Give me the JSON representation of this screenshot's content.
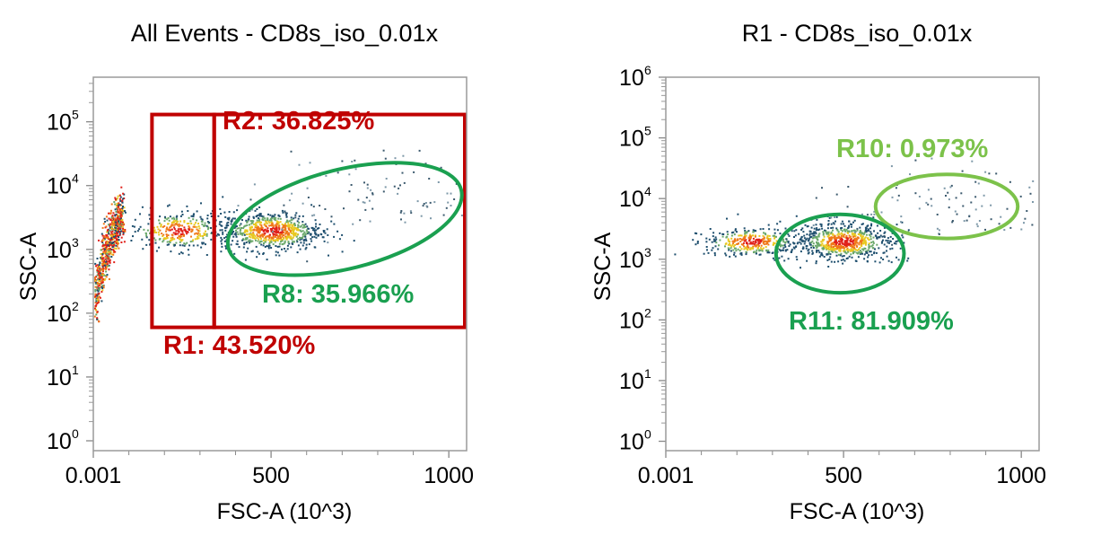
{
  "chart_data": [
    {
      "type": "scatter",
      "title": "All Events - CD8s_iso_0.01x",
      "xlabel": "FSC-A (10^3)",
      "ylabel": "SSC-A",
      "x_scale": "linear",
      "y_scale": "log",
      "xlim": [
        0,
        1050
      ],
      "ylim": [
        0.7,
        500000
      ],
      "x_ticks": [
        {
          "value": 0.001,
          "label": "0.001"
        },
        {
          "value": 500,
          "label": "500"
        },
        {
          "value": 1000,
          "label": "1000"
        }
      ],
      "y_ticks": [
        {
          "value": 1,
          "base": "10",
          "exp": "0"
        },
        {
          "value": 10,
          "base": "10",
          "exp": "1"
        },
        {
          "value": 100,
          "base": "10",
          "exp": "2"
        },
        {
          "value": 1000,
          "base": "10",
          "exp": "3"
        },
        {
          "value": 10000,
          "base": "10",
          "exp": "4"
        },
        {
          "value": 100000,
          "base": "10",
          "exp": "5"
        }
      ],
      "populations": [
        {
          "x_min": 0,
          "x_max": 80,
          "y_min": 80,
          "y_max": 4000,
          "density": "high"
        },
        {
          "center": [
            240,
            2000
          ],
          "spread": [
            70,
            0.15
          ],
          "density": "medium"
        },
        {
          "center": [
            500,
            2000
          ],
          "spread": [
            70,
            0.15
          ],
          "density": "high"
        },
        {
          "center": [
            800,
            7000
          ],
          "spread": [
            180,
            0.3
          ],
          "density": "sparse"
        }
      ],
      "gates": [
        {
          "name": "R1",
          "shape": "rectangle",
          "x": [
            165,
            340
          ],
          "y": [
            60,
            130000
          ],
          "color": "#c00000",
          "label": "R1: 43.520%"
        },
        {
          "name": "R2",
          "shape": "rectangle",
          "x": [
            340,
            1050
          ],
          "y": [
            60,
            130000
          ],
          "color": "#c00000",
          "label": "R2: 36.825%"
        },
        {
          "name": "R8",
          "shape": "ellipse",
          "x": [
            370,
            1050
          ],
          "y": [
            500,
            18000
          ],
          "color": "#1aa050",
          "label": "R8: 35.966%"
        }
      ]
    },
    {
      "type": "scatter",
      "title": "R1 - CD8s_iso_0.01x",
      "xlabel": "FSC-A (10^3)",
      "ylabel": "SSC-A",
      "x_scale": "linear",
      "y_scale": "log",
      "xlim": [
        0,
        1050
      ],
      "ylim": [
        0.7,
        1000000
      ],
      "x_ticks": [
        {
          "value": 0.001,
          "label": "0.001"
        },
        {
          "value": 500,
          "label": "500"
        },
        {
          "value": 1000,
          "label": "1000"
        }
      ],
      "y_ticks": [
        {
          "value": 1,
          "base": "10",
          "exp": "0"
        },
        {
          "value": 10,
          "base": "10",
          "exp": "1"
        },
        {
          "value": 100,
          "base": "10",
          "exp": "2"
        },
        {
          "value": 1000,
          "base": "10",
          "exp": "3"
        },
        {
          "value": 10000,
          "base": "10",
          "exp": "4"
        },
        {
          "value": 100000,
          "base": "10",
          "exp": "5"
        },
        {
          "value": 1000000,
          "base": "10",
          "exp": "6"
        }
      ],
      "populations": [
        {
          "center": [
            240,
            2000
          ],
          "spread": [
            70,
            0.12
          ],
          "density": "medium"
        },
        {
          "center": [
            500,
            2000
          ],
          "spread": [
            65,
            0.15
          ],
          "density": "high"
        },
        {
          "center": [
            790,
            8000
          ],
          "spread": [
            180,
            0.3
          ],
          "density": "sparse"
        }
      ],
      "gates": [
        {
          "name": "R10",
          "shape": "ellipse",
          "x": [
            590,
            990
          ],
          "y": [
            2200,
            25000
          ],
          "color": "#7cc24a",
          "label": "R10: 0.973%"
        },
        {
          "name": "R11",
          "shape": "ellipse",
          "x": [
            310,
            670
          ],
          "y": [
            280,
            5500
          ],
          "color": "#1aa050",
          "label": "R11: 81.909%"
        }
      ]
    }
  ]
}
